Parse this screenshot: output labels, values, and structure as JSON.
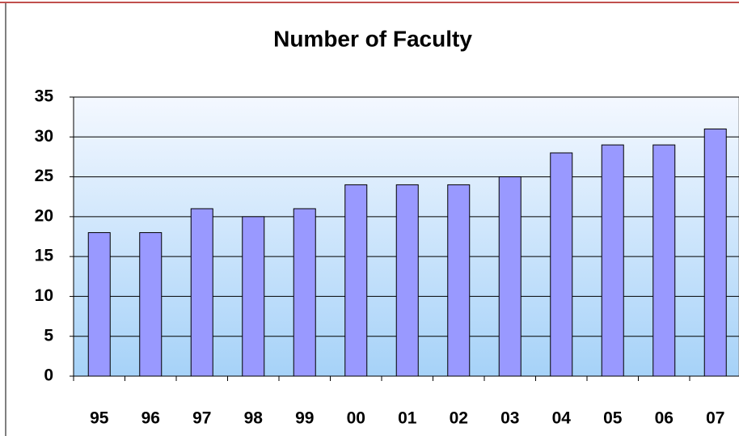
{
  "chart_data": {
    "type": "bar",
    "title": "Number of Faculty",
    "categories": [
      "95",
      "96",
      "97",
      "98",
      "99",
      "00",
      "01",
      "02",
      "03",
      "04",
      "05",
      "06",
      "07"
    ],
    "values": [
      18,
      18,
      21,
      20,
      21,
      24,
      24,
      24,
      25,
      28,
      29,
      29,
      31
    ],
    "color": "#9999ff",
    "ylim": [
      0,
      35
    ],
    "yticks": [
      0,
      5,
      10,
      15,
      20,
      25,
      30,
      35
    ],
    "grid": true
  }
}
